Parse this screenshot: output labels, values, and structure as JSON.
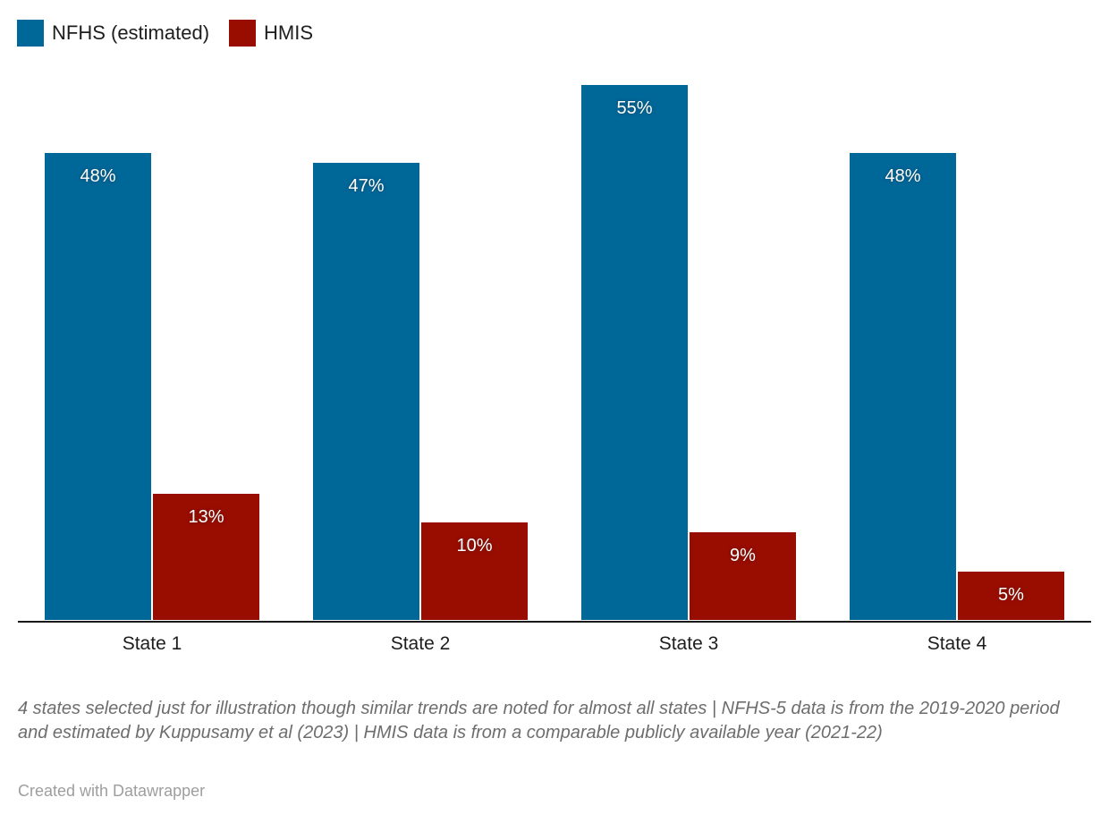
{
  "legend": {
    "items": [
      {
        "label": "NFHS (estimated)",
        "color": "#006799"
      },
      {
        "label": "HMIS",
        "color": "#990c00"
      }
    ]
  },
  "chart_data": {
    "type": "bar",
    "categories": [
      "State 1",
      "State 2",
      "State 3",
      "State 4"
    ],
    "series": [
      {
        "name": "NFHS (estimated)",
        "color": "#006799",
        "values": [
          48,
          47,
          55,
          48
        ]
      },
      {
        "name": "HMIS",
        "color": "#990c00",
        "values": [
          13,
          10,
          9,
          5
        ]
      }
    ],
    "value_suffix": "%",
    "data_labels": [
      "48%",
      "47%",
      "55%",
      "48%",
      "13%",
      "10%",
      "9%",
      "5%"
    ],
    "ylim": [
      0,
      63.7
    ],
    "grid": false,
    "legend_position": "top-left",
    "xlabel": "",
    "ylabel": ""
  },
  "axis": {
    "line_color": "#1a1a1a"
  },
  "footer": {
    "notes": "4 states selected just for illustration though similar trends are noted for almost all states | NFHS-5 data is from the 2019-2020 period and estimated by Kuppusamy et al (2023) | HMIS data is from a comparable publicly available year (2021-22)",
    "credit": "Created with Datawrapper"
  },
  "colors": {
    "nfhs_bar": "#006799",
    "hmis_bar": "#990c00",
    "label_text": "#1d1d1d",
    "bar_value_text": "#ffffff",
    "notes_text": "#6d6d6d",
    "credit_text": "#9e9e9e"
  }
}
